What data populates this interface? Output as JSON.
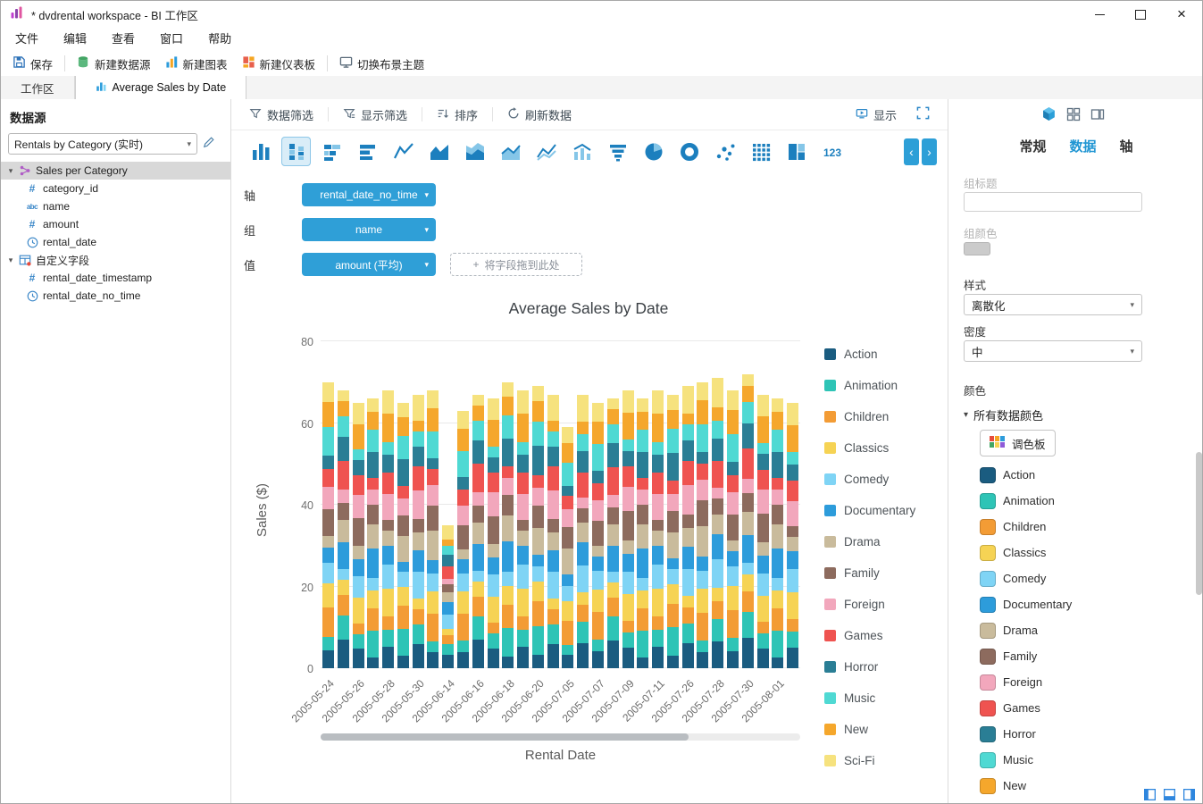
{
  "window": {
    "title": "* dvdrental workspace - BI 工作区"
  },
  "menubar": {
    "items": [
      "文件",
      "编辑",
      "查看",
      "窗口",
      "帮助"
    ]
  },
  "toolbar": {
    "save": "保存",
    "new_datasource": "新建数据源",
    "new_chart": "新建图表",
    "new_dashboard": "新建仪表板",
    "switch_theme": "切换布景主题"
  },
  "tabs": {
    "workspace": "工作区",
    "chart_tab": "Average Sales by Date"
  },
  "datasource_panel": {
    "title": "数据源",
    "dataset": "Rentals by Category (实时)",
    "tree": [
      {
        "label": "Sales per Category",
        "type": "group",
        "selected": true
      },
      {
        "label": "category_id",
        "type": "number"
      },
      {
        "label": "name",
        "type": "text"
      },
      {
        "label": "amount",
        "type": "number"
      },
      {
        "label": "rental_date",
        "type": "datetime"
      },
      {
        "label": "自定义字段",
        "type": "table"
      },
      {
        "label": "rental_date_timestamp",
        "type": "number"
      },
      {
        "label": "rental_date_no_time",
        "type": "datetime"
      }
    ]
  },
  "chart_toolbar": {
    "data_filter": "数据筛选",
    "display_filter": "显示筛选",
    "sort": "排序",
    "refresh": "刷新数据",
    "display": "显示"
  },
  "chart_types": {
    "selected": "stacked-bar",
    "items": [
      "bar",
      "stacked-bar",
      "horizontal-stacked-bar",
      "horizontal-bar",
      "line",
      "area",
      "stacked-area",
      "area-line",
      "multi-line",
      "bar-line",
      "funnel",
      "pie",
      "donut",
      "scatter",
      "dot-grid",
      "treemap",
      "numbers"
    ]
  },
  "field_rows": {
    "axis_label": "轴",
    "axis_field": "rental_date_no_time",
    "group_label": "组",
    "group_field": "name",
    "value_label": "值",
    "value_field": "amount (平均)",
    "drop_hint": "将字段拖到此处"
  },
  "chart_data": {
    "type": "stacked-bar",
    "title": "Average Sales by Date",
    "xlabel": "Rental Date",
    "ylabel": "Sales ($)",
    "ylim": [
      0,
      80
    ],
    "yticks": [
      0,
      20,
      40,
      60,
      80
    ],
    "grid": true,
    "legend_position": "right",
    "categories": [
      "2005-05-24",
      "2005-05-25",
      "2005-05-26",
      "2005-05-27",
      "2005-05-28",
      "2005-05-29",
      "2005-05-30",
      "2005-05-31",
      "2005-06-14",
      "2005-06-15",
      "2005-06-16",
      "2005-06-17",
      "2005-06-18",
      "2005-06-19",
      "2005-06-20",
      "2005-06-21",
      "2005-07-05",
      "2005-07-06",
      "2005-07-07",
      "2005-07-08",
      "2005-07-09",
      "2005-07-10",
      "2005-07-11",
      "2005-07-12",
      "2005-07-26",
      "2005-07-27",
      "2005-07-28",
      "2005-07-29",
      "2005-07-30",
      "2005-07-31",
      "2005-08-01",
      "2005-08-02"
    ],
    "xtick_labels": [
      "2005-05-24",
      "2005-05-26",
      "2005-05-28",
      "2005-05-30",
      "2005-06-14",
      "2005-06-16",
      "2005-06-18",
      "2005-06-20",
      "2005-07-05",
      "2005-07-07",
      "2005-07-09",
      "2005-07-11",
      "2005-07-26",
      "2005-07-28",
      "2005-07-30",
      "2005-08-01"
    ],
    "totals": [
      70,
      68,
      65,
      66,
      68,
      65,
      67,
      68,
      35,
      63,
      67,
      66,
      70,
      68,
      69,
      67,
      59,
      67,
      65,
      66,
      68,
      66,
      68,
      67,
      69,
      70,
      71,
      68,
      72,
      67,
      66,
      65
    ],
    "series": [
      {
        "name": "Action",
        "color": "#1a5c80"
      },
      {
        "name": "Animation",
        "color": "#2ec4b6"
      },
      {
        "name": "Children",
        "color": "#f39c35"
      },
      {
        "name": "Classics",
        "color": "#f6d354"
      },
      {
        "name": "Comedy",
        "color": "#7fd4f5"
      },
      {
        "name": "Documentary",
        "color": "#2d9cdb"
      },
      {
        "name": "Drama",
        "color": "#c9bb9c"
      },
      {
        "name": "Family",
        "color": "#8d6b5e"
      },
      {
        "name": "Foreign",
        "color": "#f2a7bc"
      },
      {
        "name": "Games",
        "color": "#ef5350"
      },
      {
        "name": "Horror",
        "color": "#2a7e95"
      },
      {
        "name": "Music",
        "color": "#4fd9d3"
      },
      {
        "name": "New",
        "color": "#f5a72c"
      },
      {
        "name": "Sci-Fi",
        "color": "#f6e27e"
      }
    ]
  },
  "properties_panel": {
    "tabs": [
      "常规",
      "数据",
      "轴"
    ],
    "active_tab": "数据",
    "group_title_label": "组标题",
    "group_color_label": "组颜色",
    "style_label": "样式",
    "style_value": "离散化",
    "density_label": "密度",
    "density_value": "中",
    "colors_label": "颜色",
    "all_colors_label": "所有数据颜色",
    "palette_button": "调色板"
  }
}
